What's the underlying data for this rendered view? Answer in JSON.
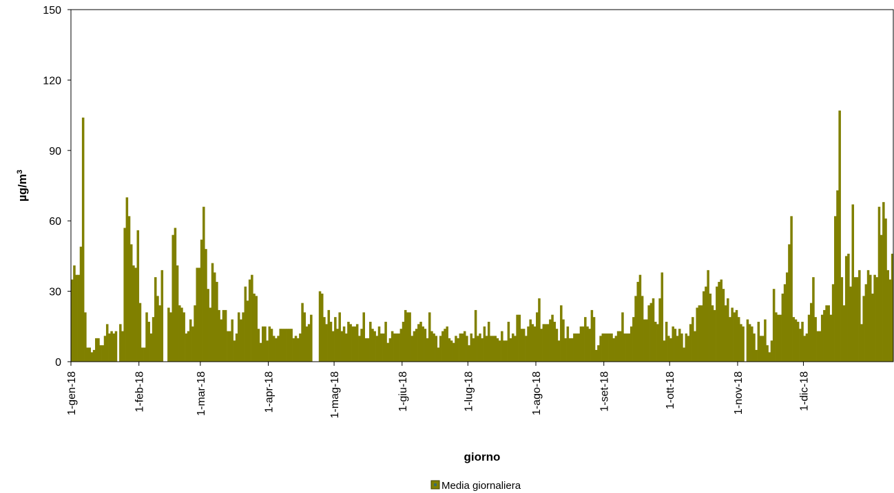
{
  "chart_data": {
    "type": "bar",
    "xlabel": "giorno",
    "ylabel": "µg/m",
    "ylabel_sup": "3",
    "ylim": [
      0,
      150
    ],
    "yticks": [
      0,
      30,
      60,
      90,
      120,
      150
    ],
    "grid": false,
    "legend_position": "bottom",
    "color": "#808000",
    "x_start": "2018-01-01",
    "x_end": "2018-12-31",
    "month_ticks": [
      {
        "label": "1-gen-18",
        "day": 0
      },
      {
        "label": "1-feb-18",
        "day": 31
      },
      {
        "label": "1-mar-18",
        "day": 59
      },
      {
        "label": "1-apr-18",
        "day": 90
      },
      {
        "label": "1-mag-18",
        "day": 120
      },
      {
        "label": "1-giu-18",
        "day": 151
      },
      {
        "label": "1-lug-18",
        "day": 181
      },
      {
        "label": "1-ago-18",
        "day": 212
      },
      {
        "label": "1-set-18",
        "day": 243
      },
      {
        "label": "1-ott-18",
        "day": 273
      },
      {
        "label": "1-nov-18",
        "day": 304
      },
      {
        "label": "1-dic-18",
        "day": 334
      }
    ],
    "series": [
      {
        "name": "Media giornaliera",
        "values": [
          35,
          41,
          37,
          37,
          49,
          104,
          21,
          6,
          6,
          4,
          5,
          10,
          10,
          7,
          7,
          11,
          16,
          12,
          13,
          12,
          13,
          null,
          16,
          13,
          57,
          70,
          62,
          50,
          41,
          40,
          56,
          25,
          6,
          6,
          21,
          17,
          12,
          19,
          36,
          28,
          24,
          39,
          null,
          null,
          23,
          21,
          54,
          57,
          41,
          24,
          23,
          21,
          12,
          13,
          18,
          15,
          24,
          40,
          40,
          52,
          66,
          48,
          31,
          23,
          42,
          38,
          34,
          22,
          18,
          22,
          22,
          13,
          13,
          18,
          9,
          12,
          21,
          18,
          21,
          32,
          26,
          35,
          37,
          29,
          28,
          14,
          8,
          15,
          15,
          9,
          15,
          14,
          11,
          10,
          11,
          14,
          14,
          14,
          14,
          14,
          14,
          10,
          11,
          10,
          12,
          25,
          21,
          15,
          16,
          20,
          null,
          null,
          null,
          30,
          29,
          19,
          16,
          22,
          17,
          13,
          19,
          14,
          21,
          13,
          15,
          12,
          17,
          16,
          15,
          15,
          16,
          11,
          14,
          21,
          10,
          10,
          17,
          14,
          13,
          11,
          15,
          12,
          12,
          17,
          8,
          10,
          13,
          12,
          12,
          12,
          14,
          17,
          22,
          21,
          21,
          11,
          13,
          14,
          16,
          17,
          15,
          14,
          10,
          21,
          13,
          12,
          11,
          6,
          11,
          13,
          14,
          15,
          10,
          9,
          8,
          11,
          10,
          12,
          12,
          13,
          11,
          7,
          12,
          10,
          22,
          11,
          12,
          10,
          15,
          11,
          17,
          11,
          11,
          11,
          10,
          9,
          13,
          9,
          9,
          17,
          10,
          12,
          11,
          20,
          20,
          14,
          14,
          11,
          15,
          18,
          16,
          15,
          21,
          27,
          14,
          16,
          16,
          16,
          18,
          20,
          17,
          14,
          9,
          24,
          18,
          10,
          15,
          10,
          10,
          12,
          12,
          12,
          15,
          15,
          19,
          15,
          14,
          22,
          19,
          5,
          7,
          11,
          12,
          12,
          12,
          12,
          12,
          10,
          11,
          13,
          13,
          21,
          12,
          12,
          12,
          15,
          19,
          28,
          34,
          37,
          28,
          18,
          18,
          24,
          25,
          27,
          17,
          16,
          27,
          38,
          9,
          17,
          11,
          10,
          15,
          14,
          11,
          14,
          12,
          6,
          12,
          11,
          16,
          19,
          13,
          23,
          24,
          24,
          30,
          32,
          39,
          29,
          24,
          22,
          32,
          34,
          35,
          31,
          24,
          27,
          19,
          23,
          21,
          22,
          19,
          16,
          15,
          null,
          18,
          16,
          15,
          12,
          5,
          17,
          11,
          11,
          18,
          7,
          4,
          9,
          31,
          21,
          20,
          20,
          29,
          33,
          38,
          50,
          62,
          19,
          18,
          17,
          14,
          17,
          11,
          12,
          20,
          25,
          36,
          19,
          13,
          13,
          20,
          22,
          24,
          24,
          20,
          33,
          62,
          73,
          107,
          36,
          24,
          45,
          46,
          32,
          67,
          36,
          36,
          39,
          16,
          28,
          33,
          39,
          37,
          29,
          37,
          36,
          66,
          54,
          68,
          61,
          39,
          35,
          46
        ]
      }
    ]
  }
}
